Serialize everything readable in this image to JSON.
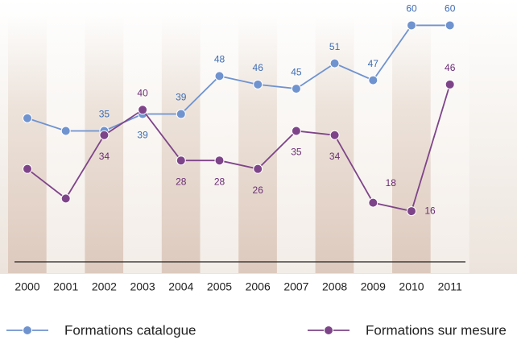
{
  "chart_data": {
    "type": "line",
    "categories": [
      "2000",
      "2001",
      "2002",
      "2003",
      "2004",
      "2005",
      "2006",
      "2007",
      "2008",
      "2009",
      "2010",
      "2011"
    ],
    "series": [
      {
        "name": "Formations catalogue",
        "color": "#6f93cf",
        "label_color": "#3d6db3",
        "values": [
          38,
          35,
          35,
          39,
          39,
          48,
          46,
          45,
          51,
          47,
          60,
          60
        ],
        "value_labels": [
          null,
          null,
          "35",
          "39",
          "39",
          "48",
          "46",
          "45",
          "51",
          "47",
          "60",
          "60"
        ]
      },
      {
        "name": "Formations sur mesure",
        "color": "#7e4489",
        "label_color": "#6a2d74",
        "values": [
          26,
          19,
          34,
          40,
          28,
          28,
          26,
          35,
          34,
          18,
          16,
          46
        ],
        "value_labels": [
          null,
          null,
          "34",
          "40",
          "28",
          "28",
          "26",
          "35",
          "34",
          "18",
          "16",
          "46"
        ]
      }
    ],
    "ylim": [
      4,
      66
    ]
  }
}
